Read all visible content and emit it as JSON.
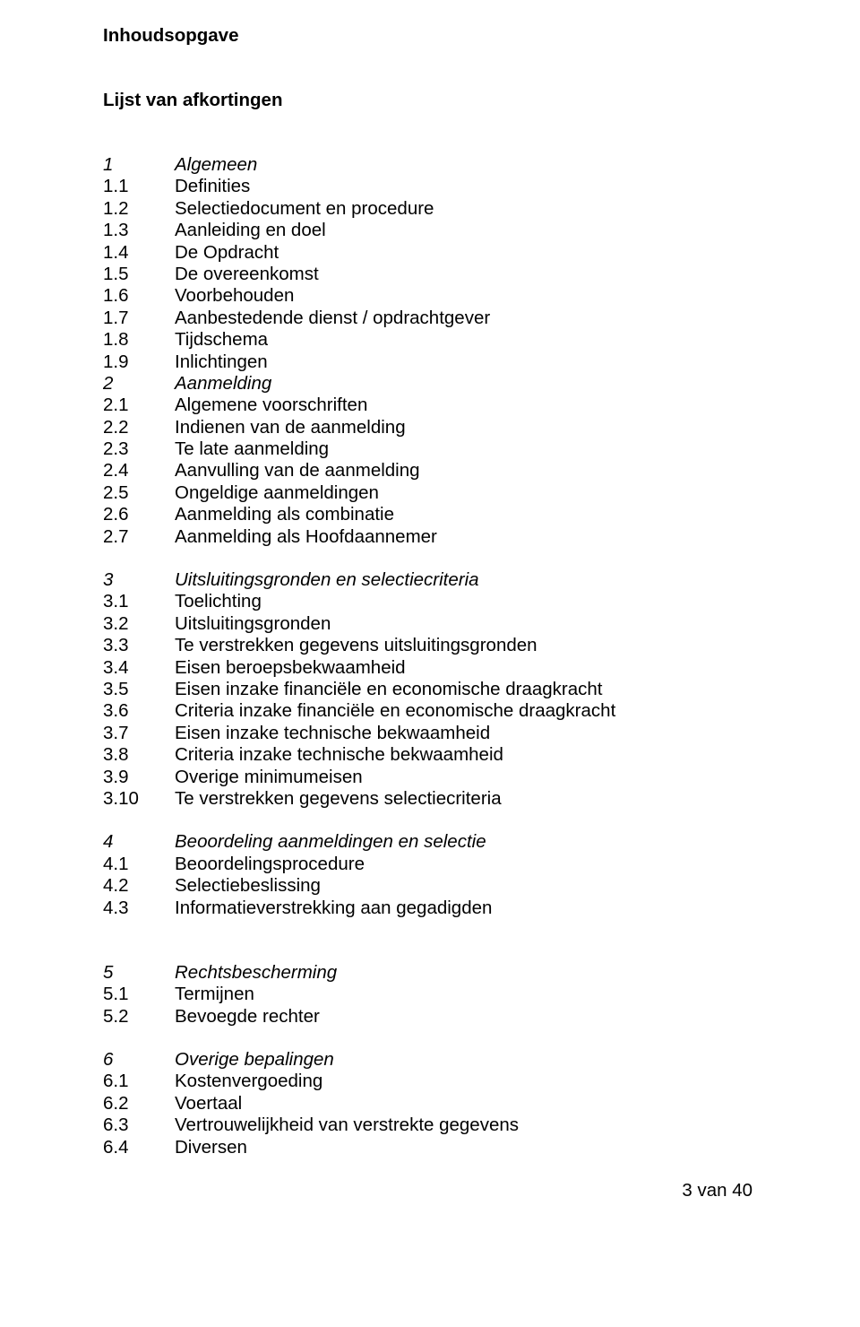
{
  "page": {
    "title": "Inhoudsopgave",
    "subtitle": "Lijst van afkortingen",
    "footer": "3 van 40"
  },
  "sections": [
    {
      "head": {
        "num": "1",
        "label": "Algemeen"
      },
      "items": [
        {
          "num": "1.1",
          "label": "Definities"
        },
        {
          "num": "1.2",
          "label": "Selectiedocument en procedure"
        },
        {
          "num": "1.3",
          "label": "Aanleiding en doel"
        },
        {
          "num": "1.4",
          "label": "De Opdracht"
        },
        {
          "num": "1.5",
          "label": "De overeenkomst"
        },
        {
          "num": "1.6",
          "label": "Voorbehouden"
        },
        {
          "num": "1.7",
          "label": "Aanbestedende dienst / opdrachtgever"
        },
        {
          "num": "1.8",
          "label": "Tijdschema"
        },
        {
          "num": "1.9",
          "label": "Inlichtingen"
        }
      ]
    },
    {
      "head": {
        "num": "2",
        "label": "Aanmelding"
      },
      "items": [
        {
          "num": "2.1",
          "label": "Algemene voorschriften"
        },
        {
          "num": "2.2",
          "label": "Indienen van de aanmelding"
        },
        {
          "num": "2.3",
          "label": "Te late aanmelding"
        },
        {
          "num": "2.4",
          "label": "Aanvulling van de aanmelding"
        },
        {
          "num": "2.5",
          "label": "Ongeldige aanmeldingen"
        },
        {
          "num": "2.6",
          "label": "Aanmelding als combinatie"
        },
        {
          "num": "2.7",
          "label": "Aanmelding als Hoofdaannemer"
        }
      ]
    },
    {
      "head": {
        "num": "3",
        "label": "Uitsluitingsgronden en selectiecriteria"
      },
      "items": [
        {
          "num": "3.1",
          "label": "Toelichting"
        },
        {
          "num": "3.2",
          "label": "Uitsluitingsgronden"
        },
        {
          "num": "3.3",
          "label": "Te verstrekken gegevens uitsluitingsgronden"
        },
        {
          "num": "3.4",
          "label": "Eisen beroepsbekwaamheid"
        },
        {
          "num": "3.5",
          "label": "Eisen inzake financiële en economische draagkracht"
        },
        {
          "num": "3.6",
          "label": "Criteria inzake financiële en economische draagkracht"
        },
        {
          "num": "3.7",
          "label": "Eisen inzake technische bekwaamheid"
        },
        {
          "num": "3.8",
          "label": "Criteria inzake technische bekwaamheid"
        },
        {
          "num": "3.9",
          "label": "Overige minimumeisen"
        },
        {
          "num": "3.10",
          "label": "Te verstrekken gegevens selectiecriteria"
        }
      ]
    },
    {
      "head": {
        "num": "4",
        "label": "Beoordeling aanmeldingen en selectie"
      },
      "items": [
        {
          "num": "4.1",
          "label": "Beoordelingsprocedure"
        },
        {
          "num": "4.2",
          "label": "Selectiebeslissing"
        },
        {
          "num": "4.3",
          "label": "Informatieverstrekking aan gegadigden"
        }
      ]
    }
  ],
  "sectionsAfterGap": [
    {
      "head": {
        "num": "5",
        "label": "Rechtsbescherming"
      },
      "items": [
        {
          "num": "5.1",
          "label": "Termijnen"
        },
        {
          "num": "5.2",
          "label": "Bevoegde rechter"
        }
      ]
    },
    {
      "head": {
        "num": "6",
        "label": "Overige bepalingen"
      },
      "items": [
        {
          "num": "6.1",
          "label": "Kostenvergoeding"
        },
        {
          "num": "6.2",
          "label": "Voertaal"
        },
        {
          "num": "6.3",
          "label": "Vertrouwelijkheid van verstrekte gegevens"
        },
        {
          "num": "6.4",
          "label": "Diversen"
        }
      ]
    }
  ]
}
